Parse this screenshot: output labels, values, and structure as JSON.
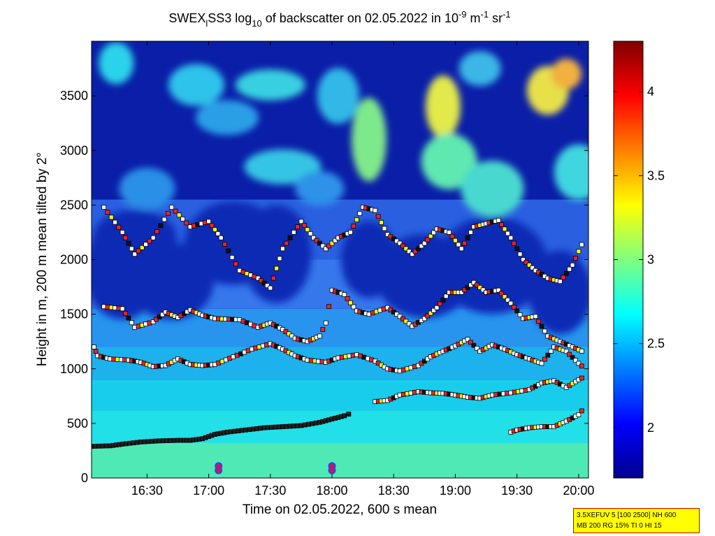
{
  "chart_data": {
    "type": "heatmap",
    "title": {
      "part1": "SWEX",
      "sub_l": "l",
      "part2": "SS3 log",
      "sub_10": "10",
      "part3": " of backscatter on 02.05.2022 in 10",
      "sup_m9": "-9",
      "part4": " m",
      "sup_m1a": "-1",
      "part5": " sr",
      "sup_m1b": "-1"
    },
    "xlabel": "Time on 02.05.2022, 600 s mean",
    "ylabel": "Height in m, 200 m mean tilted by 2°",
    "x_range_hours": [
      16.05,
      20.08
    ],
    "x_tick_values": [
      16.5,
      17.0,
      17.5,
      18.0,
      18.5,
      19.0,
      19.5,
      20.0
    ],
    "x_tick_labels": [
      "16:30",
      "17:00",
      "17:30",
      "18:00",
      "18:30",
      "19:00",
      "19:30",
      "20:00"
    ],
    "ylim": [
      0,
      4000
    ],
    "y_ticks": [
      0,
      500,
      1000,
      1500,
      2000,
      2500,
      3000,
      3500
    ],
    "colorbar": {
      "range": [
        1.7,
        4.3
      ],
      "ticks": [
        2,
        2.5,
        3,
        3.5,
        4
      ],
      "colormap": "jet"
    },
    "layer_markers": [
      {
        "name": "mixing-layer",
        "color": "#000000",
        "points": [
          [
            16.05,
            290
          ],
          [
            16.2,
            295
          ],
          [
            16.3,
            310
          ],
          [
            16.45,
            330
          ],
          [
            16.6,
            340
          ],
          [
            16.75,
            345
          ],
          [
            16.85,
            345
          ],
          [
            16.95,
            360
          ],
          [
            17.05,
            400
          ],
          [
            17.15,
            420
          ],
          [
            17.3,
            440
          ],
          [
            17.45,
            460
          ],
          [
            17.6,
            470
          ],
          [
            17.75,
            480
          ],
          [
            17.9,
            510
          ],
          [
            18.0,
            540
          ],
          [
            18.1,
            570
          ],
          [
            18.17,
            600
          ]
        ]
      },
      {
        "name": "layer-2",
        "color": "#000000",
        "points": [
          [
            18.35,
            700
          ],
          [
            18.45,
            710
          ],
          [
            18.55,
            760
          ],
          [
            18.7,
            790
          ],
          [
            18.8,
            780
          ],
          [
            18.9,
            775
          ],
          [
            19.0,
            760
          ],
          [
            19.1,
            740
          ],
          [
            19.2,
            730
          ],
          [
            19.3,
            760
          ],
          [
            19.45,
            780
          ],
          [
            19.6,
            810
          ],
          [
            19.7,
            870
          ],
          [
            19.8,
            890
          ],
          [
            19.9,
            830
          ],
          [
            20.0,
            900
          ],
          [
            20.05,
            930
          ]
        ]
      },
      {
        "name": "low-layer-late",
        "color": "#000000",
        "points": [
          [
            19.45,
            420
          ],
          [
            19.5,
            440
          ],
          [
            19.6,
            460
          ],
          [
            19.7,
            470
          ],
          [
            19.8,
            470
          ],
          [
            19.9,
            520
          ],
          [
            20.0,
            580
          ],
          [
            20.05,
            650
          ]
        ]
      },
      {
        "name": "layer-1100",
        "color": "#000000",
        "points": [
          [
            16.07,
            1200
          ],
          [
            16.1,
            1120
          ],
          [
            16.2,
            1090
          ],
          [
            16.35,
            1080
          ],
          [
            16.45,
            1060
          ],
          [
            16.55,
            1020
          ],
          [
            16.65,
            1030
          ],
          [
            16.75,
            1090
          ],
          [
            16.85,
            1040
          ],
          [
            16.95,
            1030
          ],
          [
            17.05,
            1040
          ],
          [
            17.2,
            1110
          ],
          [
            17.35,
            1180
          ],
          [
            17.5,
            1230
          ],
          [
            17.6,
            1180
          ],
          [
            17.7,
            1120
          ],
          [
            17.8,
            1080
          ],
          [
            17.95,
            1060
          ],
          [
            18.05,
            1100
          ],
          [
            18.2,
            1130
          ],
          [
            18.35,
            1070
          ],
          [
            18.45,
            1000
          ],
          [
            18.55,
            980
          ],
          [
            18.7,
            1030
          ],
          [
            18.8,
            1110
          ],
          [
            18.9,
            1160
          ],
          [
            19.0,
            1210
          ],
          [
            19.1,
            1270
          ],
          [
            19.2,
            1160
          ],
          [
            19.3,
            1220
          ],
          [
            19.4,
            1180
          ],
          [
            19.5,
            1130
          ],
          [
            19.6,
            1090
          ],
          [
            19.7,
            1050
          ],
          [
            19.8,
            1200
          ],
          [
            19.9,
            1160
          ],
          [
            20.0,
            1050
          ],
          [
            20.05,
            1000
          ]
        ]
      },
      {
        "name": "layer-1500",
        "color": "#000000",
        "points": [
          [
            16.15,
            1570
          ],
          [
            16.3,
            1550
          ],
          [
            16.4,
            1380
          ],
          [
            16.55,
            1430
          ],
          [
            16.65,
            1520
          ],
          [
            16.75,
            1470
          ],
          [
            16.85,
            1540
          ],
          [
            16.95,
            1490
          ],
          [
            17.05,
            1460
          ],
          [
            17.25,
            1450
          ],
          [
            17.4,
            1380
          ],
          [
            17.5,
            1420
          ],
          [
            17.6,
            1360
          ],
          [
            17.7,
            1280
          ],
          [
            17.8,
            1250
          ],
          [
            17.9,
            1300
          ],
          [
            17.95,
            1420
          ],
          [
            18.0,
            1720
          ],
          [
            18.1,
            1680
          ],
          [
            18.2,
            1530
          ],
          [
            18.3,
            1500
          ],
          [
            18.45,
            1560
          ],
          [
            18.55,
            1480
          ],
          [
            18.65,
            1390
          ],
          [
            18.75,
            1460
          ],
          [
            18.85,
            1560
          ],
          [
            18.95,
            1700
          ],
          [
            19.05,
            1700
          ],
          [
            19.15,
            1790
          ],
          [
            19.25,
            1700
          ],
          [
            19.35,
            1720
          ],
          [
            19.45,
            1600
          ],
          [
            19.55,
            1460
          ],
          [
            19.65,
            1480
          ],
          [
            19.75,
            1300
          ],
          [
            19.85,
            1250
          ],
          [
            19.95,
            1200
          ],
          [
            20.05,
            1150
          ]
        ]
      },
      {
        "name": "layer-2200",
        "color": "#000000",
        "points": [
          [
            16.15,
            2480
          ],
          [
            16.3,
            2250
          ],
          [
            16.4,
            2050
          ],
          [
            16.55,
            2200
          ],
          [
            16.7,
            2480
          ],
          [
            16.85,
            2300
          ],
          [
            17.0,
            2350
          ],
          [
            17.1,
            2200
          ],
          [
            17.25,
            1900
          ],
          [
            17.4,
            1830
          ],
          [
            17.5,
            1740
          ],
          [
            17.6,
            2100
          ],
          [
            17.75,
            2350
          ],
          [
            17.85,
            2200
          ],
          [
            17.95,
            2100
          ],
          [
            18.05,
            2200
          ],
          [
            18.15,
            2250
          ],
          [
            18.25,
            2480
          ],
          [
            18.35,
            2450
          ],
          [
            18.45,
            2230
          ],
          [
            18.55,
            2150
          ],
          [
            18.65,
            2050
          ],
          [
            18.75,
            2150
          ],
          [
            18.85,
            2280
          ],
          [
            18.95,
            2250
          ],
          [
            19.05,
            2100
          ],
          [
            19.15,
            2300
          ],
          [
            19.25,
            2330
          ],
          [
            19.35,
            2360
          ],
          [
            19.45,
            2200
          ],
          [
            19.55,
            2000
          ],
          [
            19.65,
            1900
          ],
          [
            19.75,
            1830
          ],
          [
            19.85,
            1800
          ],
          [
            19.95,
            1950
          ],
          [
            20.05,
            2200
          ]
        ]
      }
    ],
    "circle_markers": [
      [
        17.08,
        110
      ],
      [
        17.08,
        70
      ],
      [
        18.0,
        110
      ],
      [
        18.0,
        70
      ]
    ]
  },
  "info_box": {
    "line1": "3.5XEFUV 5 [100 2500] NH 600",
    "line2": "MB 200 RG 15% TI 0 HI 15"
  }
}
